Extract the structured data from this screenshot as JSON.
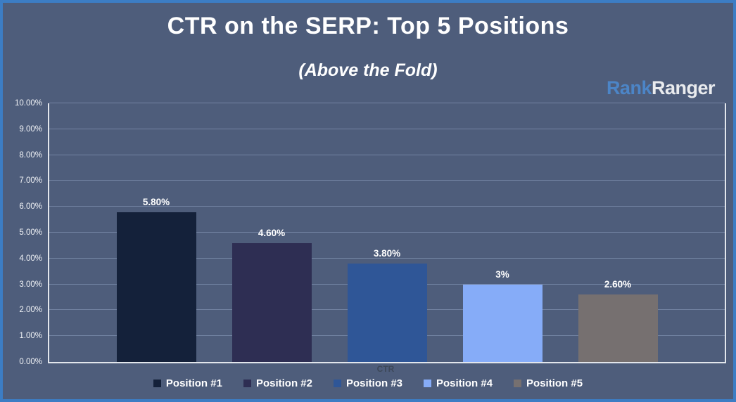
{
  "frame": {
    "background": "#4e5d7b",
    "border_color": "#3c7dc4"
  },
  "header": {
    "title": "CTR on the SERP: Top 5 Positions",
    "subtitle": "(Above the Fold)",
    "logo": {
      "rank": "Rank",
      "ranger": "Ranger",
      "rank_color": "#4c85c7",
      "ranger_color": "#e9ebee"
    }
  },
  "chart_data": {
    "type": "bar",
    "title": "CTR on the SERP: Top 5 Positions",
    "subtitle": "(Above the Fold)",
    "categories": [
      "Position #1",
      "Position #2",
      "Position #3",
      "Position #4",
      "Position #5"
    ],
    "values": [
      5.8,
      4.6,
      3.8,
      3,
      2.6
    ],
    "value_labels": [
      "5.80%",
      "4.60%",
      "3.80%",
      "3%",
      "2.60%"
    ],
    "bar_colors": [
      "#14213a",
      "#2e2e53",
      "#2f5697",
      "#86acf8",
      "#767070"
    ],
    "xlabel": "CTR",
    "ylabel": "",
    "ylim": [
      0,
      10
    ],
    "ytick_labels": [
      "0.00%",
      "1.00%",
      "2.00%",
      "3.00%",
      "4.00%",
      "5.00%",
      "6.00%",
      "7.00%",
      "8.00%",
      "9.00%",
      "10.00%"
    ],
    "grid": true,
    "gridline_color": "#7d8fae",
    "axis_line_color": "#e2e6ec",
    "value_label_color": "#ffffff",
    "tick_label_color": "#f2f4f7",
    "xlabel_color": "#3d4859",
    "legend_position": "bottom"
  }
}
